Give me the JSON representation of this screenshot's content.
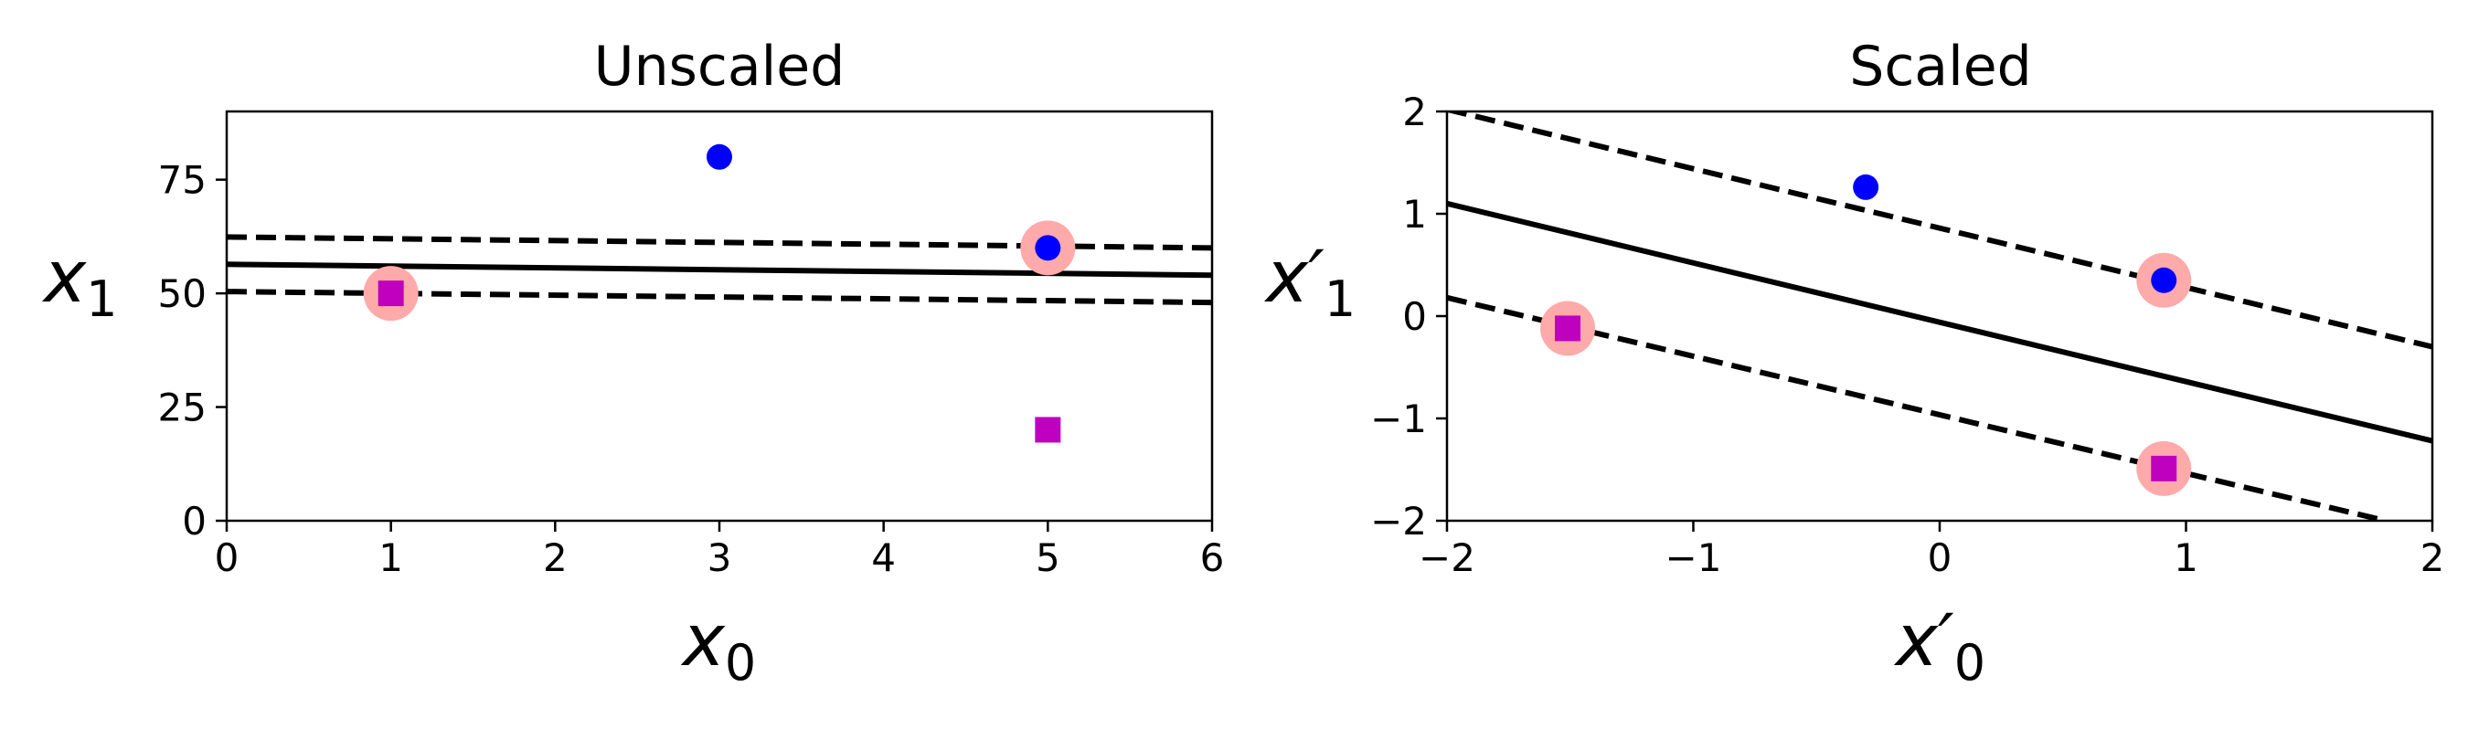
{
  "chart_data": [
    {
      "type": "scatter",
      "title": "Unscaled",
      "xlabel": {
        "base": "x",
        "prime": "",
        "sub": "0"
      },
      "ylabel": {
        "base": "x",
        "prime": "",
        "sub": "1"
      },
      "xlim": [
        0,
        6
      ],
      "ylim": [
        0,
        90
      ],
      "xticks": [
        0,
        1,
        2,
        3,
        4,
        5,
        6
      ],
      "yticks": [
        0,
        25,
        50,
        75
      ],
      "xtick_labels": [
        "0",
        "1",
        "2",
        "3",
        "4",
        "5",
        "6"
      ],
      "ytick_labels": [
        "0",
        "25",
        "50",
        "75"
      ],
      "grid": false,
      "points": [
        {
          "x": 1,
          "y": 50,
          "class": 0,
          "marker": "square",
          "color": "#bf00bf"
        },
        {
          "x": 5,
          "y": 20,
          "class": 0,
          "marker": "square",
          "color": "#bf00bf"
        },
        {
          "x": 3,
          "y": 80,
          "class": 1,
          "marker": "circle",
          "color": "#0000ff"
        },
        {
          "x": 5,
          "y": 60,
          "class": 1,
          "marker": "circle",
          "color": "#0000ff"
        }
      ],
      "support_vectors": [
        {
          "x": 1,
          "y": 50
        },
        {
          "x": 5,
          "y": 60
        }
      ],
      "support_vector_color": "#ffaaaa",
      "decision_boundary": {
        "x": [
          0,
          6
        ],
        "y": [
          56.4,
          54.0
        ]
      },
      "margin_upper": {
        "x": [
          0,
          6
        ],
        "y": [
          62.4,
          60.0
        ]
      },
      "margin_lower": {
        "x": [
          0,
          6
        ],
        "y": [
          50.4,
          48.0
        ]
      }
    },
    {
      "type": "scatter",
      "title": "Scaled",
      "xlabel": {
        "base": "x",
        "prime": "′",
        "sub": "0"
      },
      "ylabel": {
        "base": "x",
        "prime": "′",
        "sub": "1"
      },
      "xlim": [
        -2,
        2
      ],
      "ylim": [
        -2,
        2
      ],
      "xticks": [
        -2,
        -1,
        0,
        1,
        2
      ],
      "yticks": [
        -2,
        -1,
        0,
        1,
        2
      ],
      "xtick_labels": [
        "−2",
        "−1",
        "0",
        "1",
        "2"
      ],
      "ytick_labels": [
        "−2",
        "−1",
        "0",
        "1",
        "2"
      ],
      "grid": false,
      "points": [
        {
          "x": -1.51,
          "y": -0.12,
          "class": 0,
          "marker": "square",
          "color": "#bf00bf"
        },
        {
          "x": 0.91,
          "y": -1.49,
          "class": 0,
          "marker": "square",
          "color": "#bf00bf"
        },
        {
          "x": -0.3,
          "y": 1.26,
          "class": 1,
          "marker": "circle",
          "color": "#0000ff"
        },
        {
          "x": 0.91,
          "y": 0.35,
          "class": 1,
          "marker": "circle",
          "color": "#0000ff"
        }
      ],
      "support_vectors": [
        {
          "x": -1.51,
          "y": -0.12
        },
        {
          "x": 0.91,
          "y": 0.35
        },
        {
          "x": 0.91,
          "y": -1.49
        }
      ],
      "support_vector_color": "#ffaaaa",
      "decision_boundary": {
        "x": [
          -2,
          2
        ],
        "y": [
          1.1,
          -1.22
        ]
      },
      "margin_upper": {
        "x": [
          -2,
          2
        ],
        "y": [
          2.02,
          -0.3
        ]
      },
      "margin_lower": {
        "x": [
          -2,
          1.81
        ],
        "y": [
          0.18,
          -2.0
        ]
      }
    }
  ]
}
